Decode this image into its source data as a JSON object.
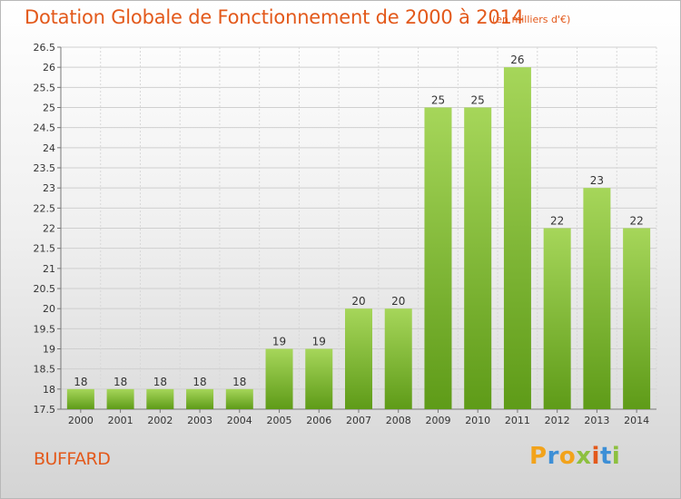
{
  "title": "Dotation Globale de Fonctionnement de 2000 à 2014",
  "subtitle": "(en milliers d'€)",
  "commune": "BUFFARD",
  "logo": {
    "letters": [
      "P",
      "r",
      "o",
      "x",
      "i",
      "t",
      "i"
    ]
  },
  "colors": {
    "accent": "#e3591b",
    "bar_light": "#a6d65a",
    "bar_dark": "#5e9b18"
  },
  "chart_data": {
    "type": "bar",
    "title": "Dotation Globale de Fonctionnement de 2000 à 2014",
    "subtitle": "(en milliers d'€)",
    "xlabel": "",
    "ylabel": "",
    "categories": [
      "2000",
      "2001",
      "2002",
      "2003",
      "2004",
      "2005",
      "2006",
      "2007",
      "2008",
      "2009",
      "2010",
      "2011",
      "2012",
      "2013",
      "2014"
    ],
    "values": [
      18,
      18,
      18,
      18,
      18,
      19,
      19,
      20,
      20,
      25,
      25,
      26,
      22,
      23,
      22
    ],
    "labels": [
      "18",
      "18",
      "18",
      "18",
      "18",
      "19",
      "19",
      "20",
      "20",
      "25",
      "25",
      "26",
      "22",
      "23",
      "22"
    ],
    "ylim": [
      17.5,
      26.5
    ],
    "yticks": [
      "17.5",
      "18",
      "18.5",
      "19",
      "19.5",
      "20",
      "20.5",
      "21",
      "21.5",
      "22",
      "22.5",
      "23",
      "23.5",
      "24",
      "24.5",
      "25",
      "25.5",
      "26",
      "26.5"
    ],
    "grid": true
  }
}
